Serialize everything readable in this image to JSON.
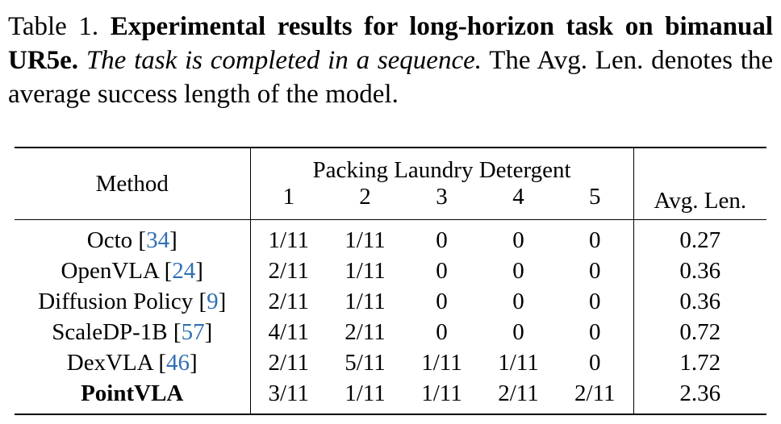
{
  "caption": {
    "label": "Table 1.",
    "title": "Experimental results for long-horizon task on bimanual UR5e.",
    "italic": "The task is completed in a sequence.",
    "text": "The Avg. Len. denotes the average success length of the model."
  },
  "table": {
    "headers": {
      "method": "Method",
      "group": "Packing Laundry Detergent",
      "steps": [
        1,
        2,
        3,
        4,
        5
      ],
      "avg": "Avg. Len."
    },
    "rows": [
      {
        "method": "Octo",
        "ref": "34",
        "steps": [
          "1/11",
          "1/11",
          0,
          0,
          0
        ],
        "avg": 0.27
      },
      {
        "method": "OpenVLA",
        "ref": "24",
        "steps": [
          "2/11",
          "1/11",
          0,
          0,
          0
        ],
        "avg": 0.36
      },
      {
        "method": "Diffusion Policy",
        "ref": "9",
        "steps": [
          "2/11",
          "1/11",
          0,
          0,
          0
        ],
        "avg": 0.36
      },
      {
        "method": "ScaleDP-1B",
        "ref": "57",
        "steps": [
          "4/11",
          "2/11",
          0,
          0,
          0
        ],
        "avg": 0.72
      },
      {
        "method": "DexVLA",
        "ref": "46",
        "steps": [
          "2/11",
          "5/11",
          "1/11",
          "1/11",
          0
        ],
        "avg": 1.72
      },
      {
        "method": "PointVLA",
        "steps": [
          "3/11",
          "1/11",
          "1/11",
          "2/11",
          "2/11"
        ],
        "avg": 2.36
      }
    ]
  }
}
